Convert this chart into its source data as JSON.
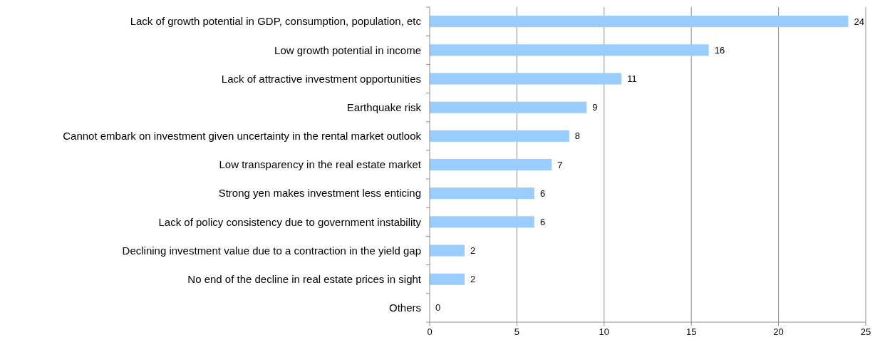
{
  "chart_data": {
    "type": "bar",
    "orientation": "horizontal",
    "categories": [
      "Lack of growth potential in GDP, consumption, population, etc",
      "Low growth potential in income",
      "Lack of attractive investment opportunities",
      "Earthquake risk",
      "Cannot embark on investment given uncertainty in the rental market outlook",
      "Low transparency in the real estate market",
      "Strong yen makes investment less enticing",
      "Lack of policy consistency due to government instability",
      "Declining investment value due to a contraction in the yield gap",
      "No end of the decline in real estate prices in sight",
      "Others"
    ],
    "values": [
      24,
      16,
      11,
      9,
      8,
      7,
      6,
      6,
      2,
      2,
      0
    ],
    "color": "#99ccff",
    "xlim": [
      0,
      25
    ],
    "xticks": [
      0,
      5,
      10,
      15,
      20,
      25
    ],
    "grid": "x",
    "data_labels": true
  }
}
